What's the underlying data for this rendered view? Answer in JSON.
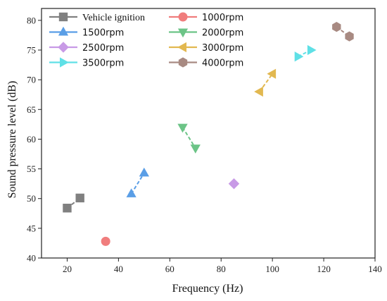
{
  "chart_data": {
    "type": "scatter",
    "xlabel": "Frequency (Hz)",
    "ylabel": "Sound pressure level (dB)",
    "xlim": [
      10,
      140
    ],
    "ylim": [
      40,
      82
    ],
    "xticks": [
      20,
      40,
      60,
      80,
      100,
      120,
      140
    ],
    "yticks": [
      40,
      45,
      50,
      55,
      60,
      65,
      70,
      75,
      80
    ],
    "grid": false,
    "legend_position": "top-left",
    "series": [
      {
        "name": "Vehicle ignition",
        "marker": "square",
        "color": "#808080",
        "points": [
          {
            "x": 20,
            "y": 48.4
          },
          {
            "x": 25,
            "y": 50.1
          }
        ]
      },
      {
        "name": "1000rpm",
        "marker": "circle",
        "color": "#f07d7d",
        "points": [
          {
            "x": 35,
            "y": 42.8
          }
        ]
      },
      {
        "name": "1500rpm",
        "marker": "triangle-up",
        "color": "#5a9ee6",
        "points": [
          {
            "x": 45,
            "y": 50.8
          },
          {
            "x": 50,
            "y": 54.3
          }
        ]
      },
      {
        "name": "2000rpm",
        "marker": "triangle-down",
        "color": "#6cc487",
        "points": [
          {
            "x": 65,
            "y": 62.0
          },
          {
            "x": 70,
            "y": 58.5
          }
        ]
      },
      {
        "name": "2500rpm",
        "marker": "diamond",
        "color": "#c89ae6",
        "points": [
          {
            "x": 85,
            "y": 52.5
          }
        ]
      },
      {
        "name": "3000rpm",
        "marker": "triangle-left",
        "color": "#e2b850",
        "points": [
          {
            "x": 95,
            "y": 68.0
          },
          {
            "x": 100,
            "y": 71.0
          }
        ]
      },
      {
        "name": "3500rpm",
        "marker": "triangle-right",
        "color": "#5fe0e6",
        "points": [
          {
            "x": 110,
            "y": 73.9
          },
          {
            "x": 115,
            "y": 75.0
          }
        ]
      },
      {
        "name": "4000rpm",
        "marker": "hexagon",
        "color": "#a88a82",
        "points": [
          {
            "x": 125,
            "y": 78.9
          },
          {
            "x": 130,
            "y": 77.3
          }
        ]
      }
    ]
  }
}
